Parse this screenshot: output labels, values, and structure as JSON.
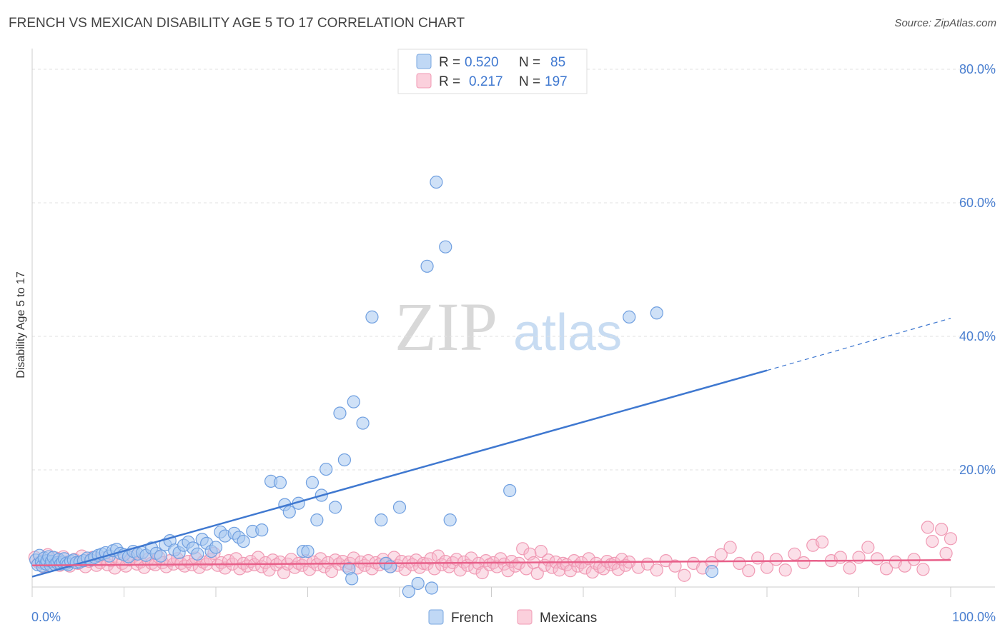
{
  "header": {
    "title": "FRENCH VS MEXICAN DISABILITY AGE 5 TO 17 CORRELATION CHART",
    "source": "Source: ZipAtlas.com"
  },
  "watermark": {
    "zip": "ZIP",
    "atlas": "atlas"
  },
  "legend": {
    "rows": [
      {
        "r_label": "R =",
        "r_value": "0.520",
        "n_label": "N =",
        "n_value": "85",
        "color": "#a8c8f0"
      },
      {
        "r_label": "R =",
        "r_value": "0.217",
        "n_label": "N =",
        "n_value": "197",
        "color": "#f7b8cc"
      }
    ]
  },
  "bottom_legend": [
    {
      "label": "French",
      "color": "#a8c8f0"
    },
    {
      "label": "Mexicans",
      "color": "#f7b8cc"
    }
  ],
  "chart_data": {
    "type": "scatter",
    "title": "FRENCH VS MEXICAN DISABILITY AGE 5 TO 17 CORRELATION CHART",
    "xlabel": "",
    "ylabel": "Disability Age 5 to 17",
    "xlim": [
      0,
      100
    ],
    "ylim": [
      0,
      82
    ],
    "x_tick_labels": [
      "0.0%",
      "100.0%"
    ],
    "y_ticks": [
      20,
      40,
      60,
      80
    ],
    "y_tick_labels": [
      "20.0%",
      "40.0%",
      "60.0%",
      "80.0%"
    ],
    "grid": true,
    "colors": {
      "french": "#3f78d0",
      "french_fill": "#a8c8f0",
      "mexicans": "#e8608a",
      "mexicans_fill": "#f7b8cc",
      "tick_text": "#4a7fd0"
    },
    "series": [
      {
        "name": "French",
        "r": 0.52,
        "n": 85,
        "trend": {
          "x0": 0,
          "y0": 4.0,
          "x1": 80,
          "y1": 34.9,
          "dash_to_x": 100,
          "dash_to_y": 42.7
        },
        "points": [
          [
            0.4,
            6.5
          ],
          [
            0.6,
            5.8
          ],
          [
            0.8,
            7.2
          ],
          [
            1,
            6.2
          ],
          [
            1.1,
            5.6
          ],
          [
            1.3,
            6.8
          ],
          [
            1.5,
            5.9
          ],
          [
            1.6,
            6.4
          ],
          [
            1.8,
            7.0
          ],
          [
            2,
            5.7
          ],
          [
            2.1,
            6.3
          ],
          [
            2.3,
            6.9
          ],
          [
            2.5,
            5.8
          ],
          [
            2.7,
            6.1
          ],
          [
            2.9,
            6.6
          ],
          [
            3.1,
            5.9
          ],
          [
            3.3,
            6.2
          ],
          [
            3.5,
            6.7
          ],
          [
            3.7,
            6.0
          ],
          [
            3.9,
            5.8
          ],
          [
            4.2,
            6.3
          ],
          [
            4.5,
            6.5
          ],
          [
            4.8,
            6.1
          ],
          [
            5.2,
            6.2
          ],
          [
            5.6,
            6.4
          ],
          [
            6,
            6.8
          ],
          [
            6.4,
            6.5
          ],
          [
            6.8,
            6.9
          ],
          [
            7.2,
            7.2
          ],
          [
            7.6,
            7.4
          ],
          [
            8,
            7.6
          ],
          [
            8.4,
            7.1
          ],
          [
            8.8,
            7.9
          ],
          [
            9.2,
            8.1
          ],
          [
            9.6,
            7.5
          ],
          [
            10,
            7.3
          ],
          [
            10.5,
            7.0
          ],
          [
            11,
            7.8
          ],
          [
            11.5,
            7.4
          ],
          [
            12,
            7.6
          ],
          [
            12.4,
            7.2
          ],
          [
            13,
            8.3
          ],
          [
            13.5,
            7.5
          ],
          [
            14,
            7.1
          ],
          [
            14.5,
            8.8
          ],
          [
            15,
            9.4
          ],
          [
            15.5,
            8.0
          ],
          [
            16,
            7.6
          ],
          [
            16.5,
            8.7
          ],
          [
            17,
            9.2
          ],
          [
            17.5,
            8.3
          ],
          [
            18,
            7.4
          ],
          [
            18.5,
            9.6
          ],
          [
            19,
            9.0
          ],
          [
            19.5,
            7.8
          ],
          [
            20,
            8.4
          ],
          [
            20.5,
            10.7
          ],
          [
            21,
            10.1
          ],
          [
            22,
            10.5
          ],
          [
            22.5,
            9.9
          ],
          [
            23,
            9.3
          ],
          [
            24,
            10.8
          ],
          [
            25,
            11.0
          ],
          [
            26,
            18.3
          ],
          [
            27,
            18.1
          ],
          [
            27.5,
            14.8
          ],
          [
            28,
            13.7
          ],
          [
            29,
            15.0
          ],
          [
            29.5,
            7.8
          ],
          [
            30,
            7.8
          ],
          [
            30.5,
            18.1
          ],
          [
            31,
            12.5
          ],
          [
            31.5,
            16.2
          ],
          [
            32,
            20.1
          ],
          [
            33,
            14.4
          ],
          [
            34,
            21.5
          ],
          [
            33.5,
            28.5
          ],
          [
            34.5,
            5.2
          ],
          [
            34.8,
            3.7
          ],
          [
            35,
            30.2
          ],
          [
            36,
            27.0
          ],
          [
            37,
            42.9
          ],
          [
            38,
            12.5
          ],
          [
            38.5,
            6.0
          ],
          [
            39,
            5.5
          ],
          [
            40,
            14.4
          ],
          [
            41,
            1.8
          ],
          [
            42,
            3.0
          ],
          [
            43,
            50.5
          ],
          [
            43.5,
            2.3
          ],
          [
            44,
            63.1
          ],
          [
            45,
            53.4
          ],
          [
            45.5,
            12.5
          ],
          [
            52,
            16.9
          ],
          [
            65,
            42.9
          ],
          [
            68,
            43.5
          ],
          [
            74,
            4.8
          ]
        ]
      },
      {
        "name": "Mexicans",
        "r": 0.217,
        "n": 197,
        "trend": {
          "x0": 0,
          "y0": 5.7,
          "x1": 100,
          "y1": 6.5
        },
        "points": [
          [
            0.3,
            6.9
          ],
          [
            0.7,
            6.1
          ],
          [
            1.2,
            5.5
          ],
          [
            1.7,
            7.3
          ],
          [
            2.2,
            6.0
          ],
          [
            2.6,
            6.8
          ],
          [
            3.0,
            5.7
          ],
          [
            3.4,
            7.0
          ],
          [
            3.8,
            6.2
          ],
          [
            4.1,
            5.6
          ],
          [
            4.6,
            6.6
          ],
          [
            5.0,
            6.0
          ],
          [
            5.4,
            7.1
          ],
          [
            5.8,
            5.5
          ],
          [
            6.2,
            6.3
          ],
          [
            6.6,
            6.9
          ],
          [
            7.0,
            5.7
          ],
          [
            7.4,
            6.1
          ],
          [
            7.8,
            6.8
          ],
          [
            8.2,
            5.8
          ],
          [
            8.6,
            6.4
          ],
          [
            9.0,
            5.3
          ],
          [
            9.4,
            6.7
          ],
          [
            9.8,
            6.0
          ],
          [
            10.2,
            5.6
          ],
          [
            10.6,
            6.5
          ],
          [
            11.0,
            7.0
          ],
          [
            11.4,
            5.9
          ],
          [
            11.8,
            6.2
          ],
          [
            12.2,
            5.4
          ],
          [
            12.6,
            6.6
          ],
          [
            13.0,
            6.0
          ],
          [
            13.4,
            5.8
          ],
          [
            13.8,
            6.9
          ],
          [
            14.2,
            6.1
          ],
          [
            14.6,
            5.5
          ],
          [
            15.0,
            6.4
          ],
          [
            15.4,
            5.9
          ],
          [
            15.8,
            6.7
          ],
          [
            16.2,
            6.0
          ],
          [
            16.6,
            5.6
          ],
          [
            17.0,
            6.3
          ],
          [
            17.4,
            5.8
          ],
          [
            17.8,
            6.8
          ],
          [
            18.2,
            5.4
          ],
          [
            18.6,
            6.2
          ],
          [
            19.0,
            5.9
          ],
          [
            19.4,
            6.6
          ],
          [
            19.8,
            7.5
          ],
          [
            20.2,
            5.7
          ],
          [
            20.6,
            6.1
          ],
          [
            21.0,
            5.3
          ],
          [
            21.4,
            6.4
          ],
          [
            21.8,
            5.9
          ],
          [
            22.2,
            6.7
          ],
          [
            22.6,
            5.2
          ],
          [
            23.0,
            6.0
          ],
          [
            23.4,
            5.6
          ],
          [
            23.8,
            6.3
          ],
          [
            24.2,
            5.8
          ],
          [
            24.6,
            6.9
          ],
          [
            25.0,
            5.5
          ],
          [
            25.4,
            6.1
          ],
          [
            25.8,
            5.0
          ],
          [
            26.2,
            6.5
          ],
          [
            26.6,
            5.8
          ],
          [
            27.0,
            6.2
          ],
          [
            27.4,
            4.6
          ],
          [
            27.8,
            5.9
          ],
          [
            28.2,
            6.6
          ],
          [
            28.6,
            5.4
          ],
          [
            29.0,
            6.0
          ],
          [
            29.4,
            5.7
          ],
          [
            29.8,
            6.4
          ],
          [
            30.2,
            5.1
          ],
          [
            30.6,
            6.2
          ],
          [
            31.0,
            5.8
          ],
          [
            31.4,
            6.7
          ],
          [
            31.8,
            5.5
          ],
          [
            32.2,
            6.1
          ],
          [
            32.6,
            4.8
          ],
          [
            33.0,
            6.5
          ],
          [
            33.4,
            5.9
          ],
          [
            33.8,
            6.3
          ],
          [
            34.2,
            5.6
          ],
          [
            34.6,
            6.0
          ],
          [
            35.0,
            6.8
          ],
          [
            35.4,
            5.3
          ],
          [
            35.8,
            6.2
          ],
          [
            36.2,
            5.7
          ],
          [
            36.6,
            6.4
          ],
          [
            37.0,
            5.2
          ],
          [
            37.4,
            6.1
          ],
          [
            37.8,
            5.8
          ],
          [
            38.2,
            6.6
          ],
          [
            38.6,
            6.0
          ],
          [
            39.0,
            5.5
          ],
          [
            39.4,
            6.9
          ],
          [
            39.8,
            5.7
          ],
          [
            40.2,
            6.3
          ],
          [
            40.6,
            5.1
          ],
          [
            41.0,
            6.2
          ],
          [
            41.4,
            5.8
          ],
          [
            41.8,
            6.5
          ],
          [
            42.2,
            5.4
          ],
          [
            42.6,
            6.0
          ],
          [
            43.0,
            5.9
          ],
          [
            43.4,
            6.7
          ],
          [
            43.8,
            5.2
          ],
          [
            44.2,
            7.1
          ],
          [
            44.6,
            5.8
          ],
          [
            45.0,
            6.3
          ],
          [
            45.4,
            5.5
          ],
          [
            45.8,
            6.1
          ],
          [
            46.2,
            6.6
          ],
          [
            46.6,
            5.0
          ],
          [
            47.0,
            6.2
          ],
          [
            47.4,
            5.7
          ],
          [
            47.8,
            6.8
          ],
          [
            48.2,
            5.3
          ],
          [
            48.6,
            6.0
          ],
          [
            49.0,
            4.6
          ],
          [
            49.4,
            6.4
          ],
          [
            49.8,
            5.8
          ],
          [
            50.2,
            6.1
          ],
          [
            50.6,
            5.5
          ],
          [
            51.0,
            6.7
          ],
          [
            51.4,
            5.9
          ],
          [
            51.8,
            4.9
          ],
          [
            52.2,
            6.3
          ],
          [
            52.6,
            5.6
          ],
          [
            53.0,
            6.0
          ],
          [
            53.4,
            8.2
          ],
          [
            53.8,
            5.2
          ],
          [
            54.2,
            7.4
          ],
          [
            54.6,
            6.1
          ],
          [
            55.0,
            4.5
          ],
          [
            55.4,
            7.8
          ],
          [
            55.8,
            5.7
          ],
          [
            56.2,
            6.5
          ],
          [
            56.6,
            5.4
          ],
          [
            57.0,
            6.2
          ],
          [
            57.4,
            5.0
          ],
          [
            57.8,
            6.0
          ],
          [
            58.2,
            5.8
          ],
          [
            58.6,
            4.9
          ],
          [
            59.0,
            6.4
          ],
          [
            59.4,
            5.6
          ],
          [
            59.8,
            6.1
          ],
          [
            60.2,
            5.3
          ],
          [
            60.6,
            6.7
          ],
          [
            61.0,
            4.7
          ],
          [
            61.4,
            6.0
          ],
          [
            61.8,
            5.5
          ],
          [
            62.2,
            5.2
          ],
          [
            62.6,
            6.3
          ],
          [
            63.0,
            5.8
          ],
          [
            63.4,
            6.0
          ],
          [
            63.8,
            5.1
          ],
          [
            64.2,
            6.6
          ],
          [
            64.6,
            5.7
          ],
          [
            65.0,
            6.2
          ],
          [
            66,
            5.4
          ],
          [
            67,
            5.9
          ],
          [
            68,
            5.0
          ],
          [
            69,
            6.4
          ],
          [
            70,
            5.6
          ],
          [
            71,
            4.2
          ],
          [
            72,
            6.0
          ],
          [
            73,
            5.3
          ],
          [
            74,
            6.1
          ],
          [
            75,
            7.3
          ],
          [
            76,
            8.4
          ],
          [
            77,
            6.0
          ],
          [
            78,
            4.9
          ],
          [
            79,
            6.8
          ],
          [
            80,
            5.4
          ],
          [
            81,
            6.6
          ],
          [
            82,
            5.0
          ],
          [
            83,
            7.4
          ],
          [
            84,
            6.1
          ],
          [
            85,
            8.7
          ],
          [
            86,
            9.2
          ],
          [
            87,
            6.4
          ],
          [
            88,
            6.9
          ],
          [
            89,
            5.3
          ],
          [
            90,
            6.9
          ],
          [
            91,
            8.4
          ],
          [
            92,
            6.7
          ],
          [
            93,
            5.2
          ],
          [
            94,
            6.2
          ],
          [
            95,
            5.6
          ],
          [
            96,
            6.6
          ],
          [
            97,
            5.1
          ],
          [
            97.5,
            11.4
          ],
          [
            98,
            9.3
          ],
          [
            99,
            11.1
          ],
          [
            100,
            9.7
          ],
          [
            99.5,
            7.5
          ]
        ]
      }
    ]
  }
}
